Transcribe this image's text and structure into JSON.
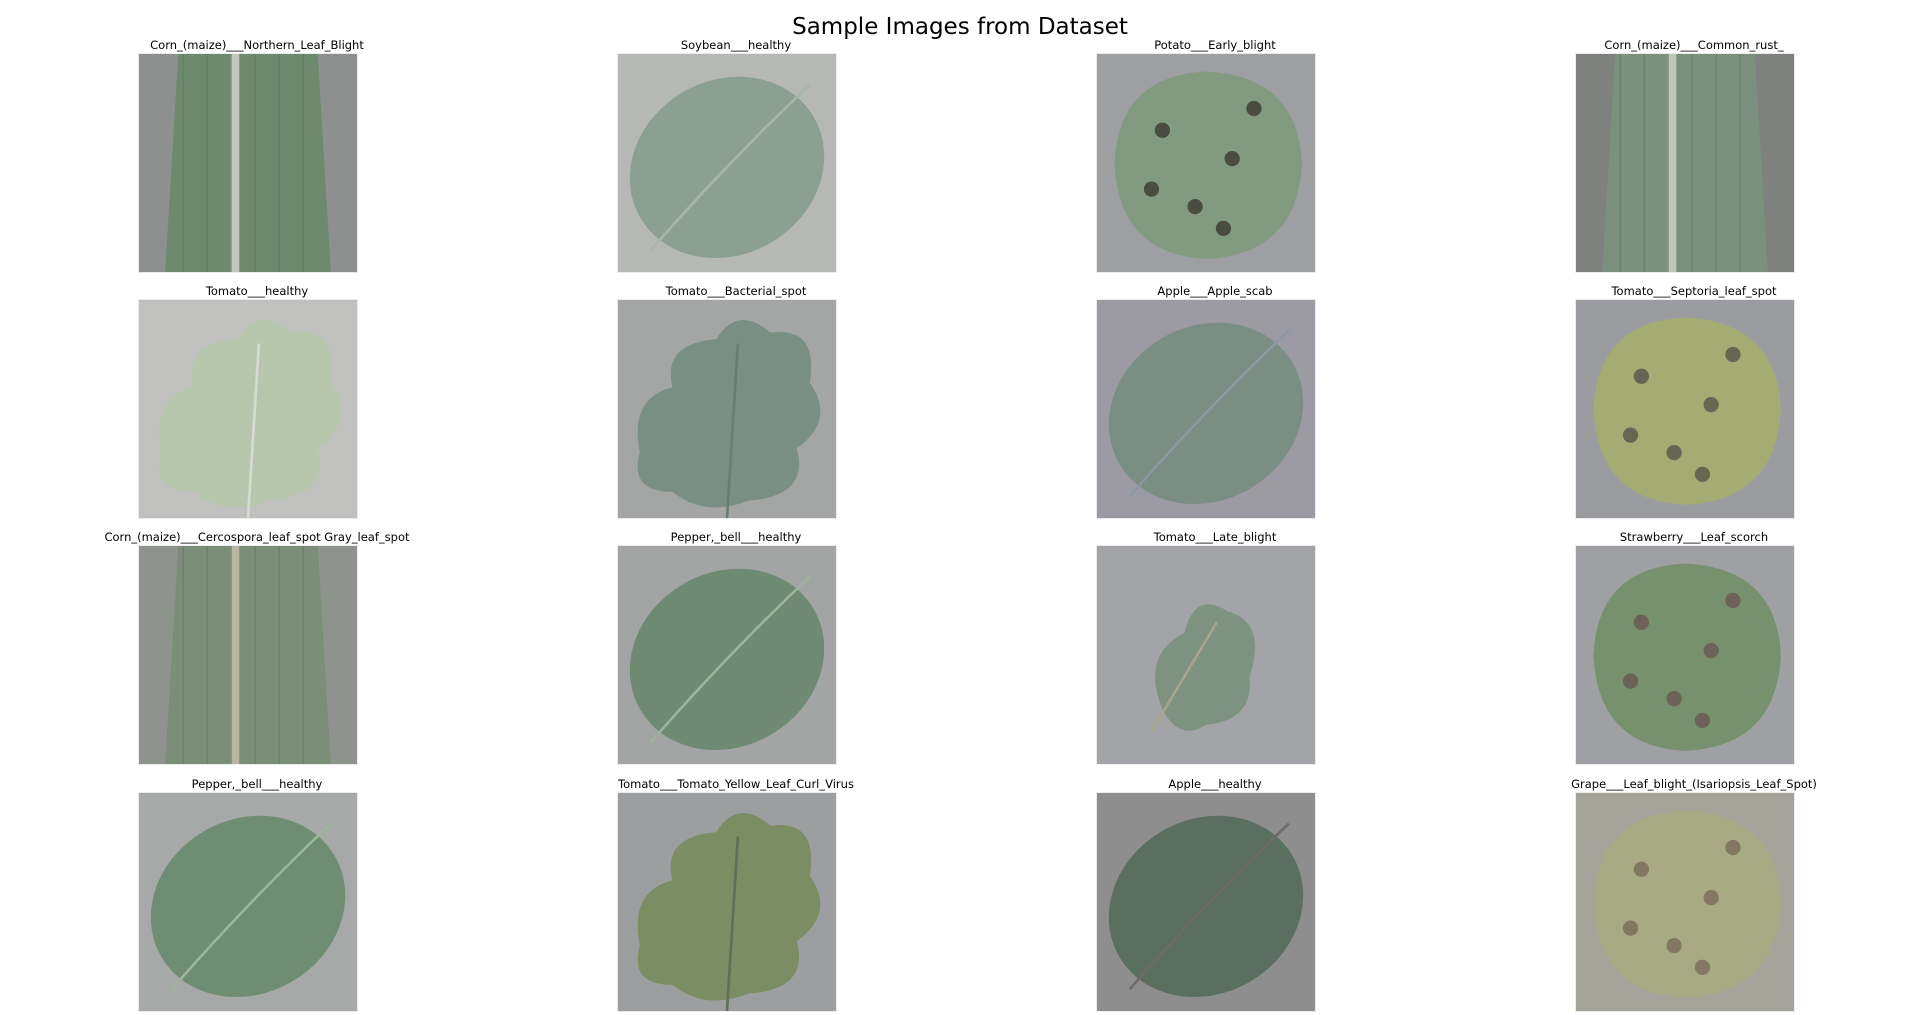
{
  "figure": {
    "title": "Sample Images from Dataset"
  },
  "samples": [
    {
      "label": "Corn_(maize)___Northern_Leaf_Blight",
      "bg": "#8e908f",
      "leaf": "#6e8a6e",
      "accent": "#c9cfc3",
      "kind": "corn"
    },
    {
      "label": "Soybean___healthy",
      "bg": "#b6b8b5",
      "leaf": "#8ba092",
      "accent": "#a7b6aa",
      "kind": "oval"
    },
    {
      "label": "Potato___Early_blight",
      "bg": "#9e9fa2",
      "leaf": "#829a80",
      "accent": "#3f4035",
      "kind": "spotted"
    },
    {
      "label": "Corn_(maize)___Common_rust_",
      "bg": "#7f817f",
      "leaf": "#7b917d",
      "accent": "#c6ccc3",
      "kind": "corn"
    },
    {
      "label": "Tomato___healthy",
      "bg": "#c0c1be",
      "leaf": "#b6c6ad",
      "accent": "#d6dbd1",
      "kind": "lobed"
    },
    {
      "label": "Tomato___Bacterial_spot",
      "bg": "#a4a5a5",
      "leaf": "#7a8f83",
      "accent": "#6a7c70",
      "kind": "lobed"
    },
    {
      "label": "Apple___Apple_scab",
      "bg": "#9c9aa2",
      "leaf": "#7a8e83",
      "accent": "#8b98a0",
      "kind": "oval"
    },
    {
      "label": "Tomato___Septoria_leaf_spot",
      "bg": "#9b9ca0",
      "leaf": "#a4ab73",
      "accent": "#5a5a4d",
      "kind": "spotted"
    },
    {
      "label": "Corn_(maize)___Cercospora_leaf_spot Gray_leaf_spot",
      "bg": "#8f938e",
      "leaf": "#7b8e78",
      "accent": "#c2b9a7",
      "kind": "corn"
    },
    {
      "label": "Pepper,_bell___healthy",
      "bg": "#a3a5a4",
      "leaf": "#6f8a72",
      "accent": "#9fb39c",
      "kind": "oval"
    },
    {
      "label": "Tomato___Late_blight",
      "bg": "#a3a4a7",
      "leaf": "#7d9281",
      "accent": "#a8a48c",
      "kind": "small"
    },
    {
      "label": "Strawberry___Leaf_scorch",
      "bg": "#9fa0a3",
      "leaf": "#77906d",
      "accent": "#6b5a55",
      "kind": "spotted"
    },
    {
      "label": "Pepper,_bell___healthy",
      "bg": "#a7a9a8",
      "leaf": "#6f8d73",
      "accent": "#9db59c",
      "kind": "oval"
    },
    {
      "label": "Tomato___Tomato_Yellow_Leaf_Curl_Virus",
      "bg": "#9d9ea0",
      "leaf": "#7b8d63",
      "accent": "#5f6e55",
      "kind": "lobed"
    },
    {
      "label": "Apple___healthy",
      "bg": "#8e8e8e",
      "leaf": "#5a6f60",
      "accent": "#6b6b6b",
      "kind": "oval"
    },
    {
      "label": "Grape___Leaf_blight_(Isariopsis_Leaf_Spot)",
      "bg": "#a5a49a",
      "leaf": "#a8aa84",
      "accent": "#7e6f5b",
      "kind": "spotted"
    }
  ]
}
